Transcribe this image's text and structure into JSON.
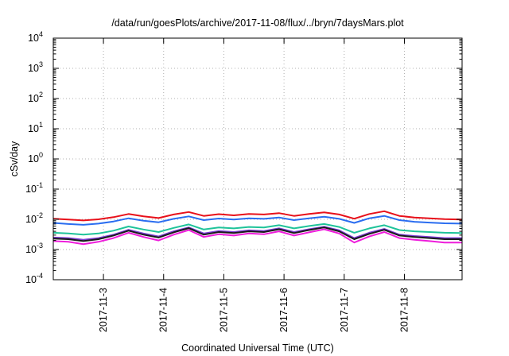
{
  "chart_data": {
    "type": "line",
    "title": "/data/run/goesPlots/archive/2017-11-08/flux/../bryn/7daysMars.plot",
    "xlabel": "Coordinated Universal Time (UTC)",
    "ylabel": "cSv/day",
    "x_ticks": [
      "2017-11-3",
      "2017-11-4",
      "2017-11-5",
      "2017-11-6",
      "2017-11-7",
      "2017-11-8"
    ],
    "xlim": [
      "2017-11-02T04:00",
      "2017-11-08T23:00"
    ],
    "y_scale": "log",
    "ylim": [
      0.0001,
      10000
    ],
    "y_ticks": [
      {
        "base": "10",
        "exp": "-4"
      },
      {
        "base": "10",
        "exp": "-3"
      },
      {
        "base": "10",
        "exp": "-2"
      },
      {
        "base": "10",
        "exp": "-1"
      },
      {
        "base": "10",
        "exp": "0"
      },
      {
        "base": "10",
        "exp": "1"
      },
      {
        "base": "10",
        "exp": "2"
      },
      {
        "base": "10",
        "exp": "3"
      },
      {
        "base": "10",
        "exp": "4"
      }
    ],
    "grid": true,
    "x": [
      "2017-11-02T04:00",
      "2017-11-02T10:00",
      "2017-11-02T16:00",
      "2017-11-02T22:00",
      "2017-11-03T04:00",
      "2017-11-03T10:00",
      "2017-11-03T16:00",
      "2017-11-03T22:00",
      "2017-11-04T04:00",
      "2017-11-04T10:00",
      "2017-11-04T16:00",
      "2017-11-04T22:00",
      "2017-11-05T04:00",
      "2017-11-05T10:00",
      "2017-11-05T16:00",
      "2017-11-05T22:00",
      "2017-11-06T04:00",
      "2017-11-06T10:00",
      "2017-11-06T16:00",
      "2017-11-06T22:00",
      "2017-11-07T04:00",
      "2017-11-07T10:00",
      "2017-11-07T16:00",
      "2017-11-07T22:00",
      "2017-11-08T04:00",
      "2017-11-08T10:00",
      "2017-11-08T16:00",
      "2017-11-08T23:00"
    ],
    "series": [
      {
        "color": "#e8101a",
        "values": [
          0.0105,
          0.0098,
          0.0092,
          0.01,
          0.0118,
          0.015,
          0.0125,
          0.011,
          0.0145,
          0.0175,
          0.013,
          0.0148,
          0.0135,
          0.015,
          0.0145,
          0.016,
          0.013,
          0.015,
          0.017,
          0.0145,
          0.0105,
          0.015,
          0.0185,
          0.013,
          0.0115,
          0.0108,
          0.0102,
          0.0098
        ]
      },
      {
        "color": "#2a6df0",
        "values": [
          0.0076,
          0.007,
          0.0066,
          0.0072,
          0.0085,
          0.0108,
          0.009,
          0.008,
          0.0104,
          0.0125,
          0.0094,
          0.0106,
          0.0098,
          0.0108,
          0.0104,
          0.0115,
          0.0094,
          0.0108,
          0.0122,
          0.0104,
          0.0076,
          0.0108,
          0.013,
          0.0094,
          0.0083,
          0.0078,
          0.0074,
          0.0072
        ]
      },
      {
        "color": "#1fc39a",
        "values": [
          0.0036,
          0.0034,
          0.0031,
          0.0034,
          0.0042,
          0.0058,
          0.0046,
          0.0038,
          0.0052,
          0.0068,
          0.0046,
          0.0054,
          0.005,
          0.0056,
          0.0054,
          0.0064,
          0.005,
          0.006,
          0.007,
          0.0056,
          0.0036,
          0.005,
          0.0064,
          0.0044,
          0.004,
          0.0038,
          0.0036,
          0.0035
        ]
      },
      {
        "color": "#7a3bd4",
        "values": [
          0.0025,
          0.0024,
          0.0021,
          0.0024,
          0.0031,
          0.0045,
          0.0034,
          0.0027,
          0.004,
          0.0054,
          0.0034,
          0.0041,
          0.0038,
          0.0043,
          0.0041,
          0.005,
          0.0038,
          0.0047,
          0.0057,
          0.0043,
          0.0024,
          0.0036,
          0.0048,
          0.0031,
          0.0028,
          0.0026,
          0.0024,
          0.0024
        ]
      },
      {
        "color": "#1a1a1a",
        "values": [
          0.0023,
          0.0022,
          0.0019,
          0.0022,
          0.0029,
          0.0042,
          0.0031,
          0.0025,
          0.0037,
          0.0051,
          0.0031,
          0.0038,
          0.0035,
          0.004,
          0.0038,
          0.0047,
          0.0035,
          0.0044,
          0.0054,
          0.004,
          0.0022,
          0.0033,
          0.0045,
          0.0029,
          0.0026,
          0.0024,
          0.0022,
          0.0022
        ]
      },
      {
        "color": "#ee1ddb",
        "values": [
          0.0019,
          0.0018,
          0.0015,
          0.0018,
          0.0024,
          0.0036,
          0.0026,
          0.002,
          0.0031,
          0.0044,
          0.0026,
          0.0032,
          0.0029,
          0.0034,
          0.0032,
          0.004,
          0.0029,
          0.0037,
          0.0047,
          0.0034,
          0.0017,
          0.0027,
          0.0038,
          0.0024,
          0.0021,
          0.0019,
          0.0017,
          0.0017
        ]
      }
    ]
  }
}
